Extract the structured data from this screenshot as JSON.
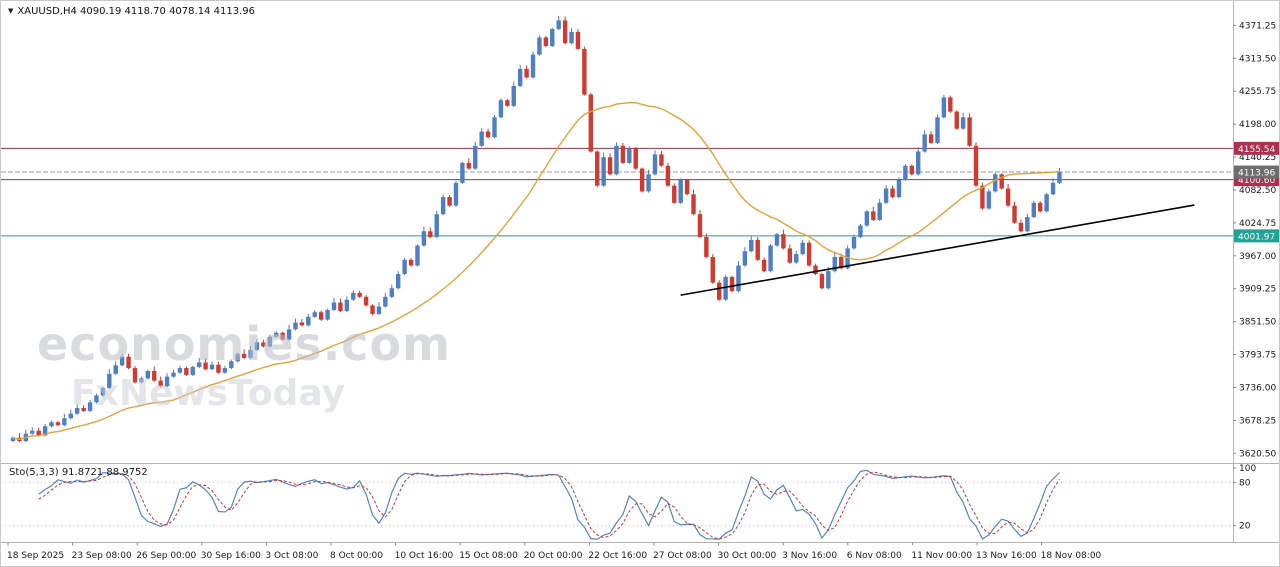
{
  "header": {
    "symbol_info": "XAUUSD,H4 4090.19 4118.70 4078.14 4113.96"
  },
  "icons": {
    "symbol_arrow": "▼"
  },
  "watermark": {
    "line1": "economies.com",
    "line2": "FxNewsToday"
  },
  "chart_data": {
    "type": "candlestick",
    "symbol": "XAUUSD",
    "timeframe": "H4",
    "ohlc_display": {
      "open": "4090.19",
      "high": "4118.70",
      "low": "4078.14",
      "close": "4113.96"
    },
    "last_price": 4113.96,
    "price_axis_labels": [
      "4371.25",
      "4313.50",
      "4255.75",
      "4198.00",
      "4140.25",
      "4082.50",
      "4024.75",
      "3967.00",
      "3909.25",
      "3851.50",
      "3793.75",
      "3736.00",
      "3678.25",
      "3620.50"
    ],
    "time_axis_labels": [
      "18 Sep 2025",
      "23 Sep 08:00",
      "26 Sep 00:00",
      "30 Sep 16:00",
      "3 Oct 08:00",
      "8 Oct 00:00",
      "10 Oct 16:00",
      "15 Oct 08:00",
      "20 Oct 00:00",
      "22 Oct 16:00",
      "27 Oct 08:00",
      "30 Oct 00:00",
      "3 Nov 16:00",
      "6 Nov 08:00",
      "11 Nov 00:00",
      "13 Nov 16:00",
      "18 Nov 08:00"
    ],
    "closes": [
      3648,
      3642,
      3655,
      3660,
      3652,
      3668,
      3675,
      3670,
      3682,
      3690,
      3700,
      3695,
      3710,
      3722,
      3735,
      3760,
      3775,
      3790,
      3770,
      3745,
      3752,
      3765,
      3748,
      3738,
      3755,
      3762,
      3770,
      3758,
      3772,
      3780,
      3768,
      3776,
      3762,
      3770,
      3782,
      3795,
      3788,
      3802,
      3815,
      3808,
      3825,
      3832,
      3820,
      3838,
      3850,
      3845,
      3860,
      3868,
      3855,
      3872,
      3885,
      3870,
      3890,
      3902,
      3895,
      3880,
      3865,
      3878,
      3895,
      3910,
      3935,
      3960,
      3950,
      3985,
      4010,
      4000,
      4040,
      4070,
      4055,
      4095,
      4130,
      4120,
      4160,
      4185,
      4175,
      4210,
      4240,
      4230,
      4265,
      4295,
      4280,
      4320,
      4350,
      4335,
      4365,
      4380,
      4340,
      4360,
      4330,
      4250,
      4150,
      4090,
      4140,
      4110,
      4160,
      4130,
      4155,
      4120,
      4080,
      4110,
      4145,
      4125,
      4090,
      4060,
      4100,
      4075,
      4040,
      4000,
      3965,
      3920,
      3890,
      3930,
      3905,
      3950,
      3975,
      3995,
      3960,
      3940,
      3985,
      4005,
      3980,
      3955,
      3970,
      3990,
      3950,
      3935,
      3910,
      3940,
      3965,
      3945,
      3980,
      4000,
      4020,
      4045,
      4030,
      4060,
      4085,
      4070,
      4100,
      4125,
      4110,
      4150,
      4180,
      4165,
      4210,
      4245,
      4220,
      4190,
      4210,
      4160,
      4090,
      4050,
      4080,
      4110,
      4085,
      4055,
      4025,
      4010,
      4035,
      4060,
      4045,
      4075,
      4095,
      4113.96
    ],
    "ma": {
      "period": 26,
      "color": "#e4a23c"
    },
    "hlines": [
      {
        "price": 4155.54,
        "label": "4155.54",
        "line_color": "#9c3246",
        "tag_bg": "#ab3150"
      },
      {
        "price": 4100.6,
        "label": "4100.60",
        "line_color": "#9c3246",
        "tag_bg": "#ab3150"
      },
      {
        "price": 4001.97,
        "label": "4001.97",
        "line_color": "#22a195",
        "tag_bg": "#22a195"
      }
    ],
    "current_price": {
      "price": 4113.96,
      "label": "4113.96",
      "line_color": "#9b9b9b",
      "tag_bg": "#6d6d6d"
    },
    "trendline": {
      "bar1": 104,
      "price1": 3898,
      "bar2": 184,
      "price2": 4056,
      "color": "#000000"
    },
    "stochastic": {
      "label": "Sto(5,3,3) 91.8721 88.9752",
      "k_value": 91.8721,
      "d_value": 88.9752,
      "k_color": "#5585c2",
      "d_color": "#c33a38",
      "axis_labels": [
        "100",
        "80",
        "20"
      ],
      "axis_values": [
        100,
        80,
        20
      ],
      "level_lines": [
        80,
        20
      ]
    },
    "colors": {
      "up_candle": "#4e7fc1",
      "down_candle": "#d03a31",
      "background": "#ffffff",
      "panel_border": "#b5b5b5",
      "axis_text": "#1a1a1a"
    },
    "layout": {
      "legend": "none",
      "grid": "off",
      "price_axis_side": "right"
    }
  }
}
